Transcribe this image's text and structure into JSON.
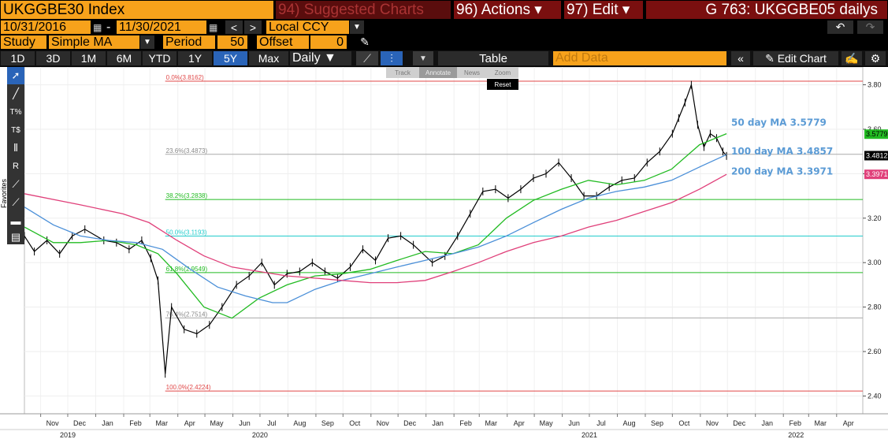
{
  "header": {
    "security": "UKGGBE30 Index",
    "suggested": "94) Suggested Charts",
    "actions": "96) Actions ▾",
    "edit": "97) Edit ▾",
    "title": "G 763: UKGGBE05 dailys"
  },
  "dates": {
    "start": "10/31/2016",
    "sep": "-",
    "end": "11/30/2021",
    "currency": "Local CCY"
  },
  "study": {
    "label": "Study",
    "type": "Simple MA",
    "period_label": "Period",
    "period": "50",
    "offset_label": "Offset",
    "offset": "0"
  },
  "ranges": [
    "1D",
    "3D",
    "1M",
    "6M",
    "YTD",
    "1Y",
    "5Y",
    "Max"
  ],
  "active_range": "5Y",
  "frequency": "Daily ▼",
  "table_label": "Table",
  "add_data": "Add Data",
  "edit_chart": "Edit Chart",
  "mini_tools": [
    "Track",
    "Annotate",
    "News",
    "Zoom"
  ],
  "reset": "Reset",
  "favorites": "Favorites",
  "colors": {
    "orange": "#f7a21b",
    "ma50": "#22bb22",
    "ma100": "#4a8fd8",
    "ma200": "#e0407a",
    "price": "#000000"
  },
  "chart_data": {
    "type": "line",
    "title": "",
    "yrange": [
      2.32,
      3.88
    ],
    "yticks": [
      2.4,
      2.6,
      2.8,
      3.0,
      3.2,
      3.4,
      3.6,
      3.8
    ],
    "ytick_labels": [
      "2.40",
      "2.60",
      "2.80",
      "3.00",
      "3.20",
      "3.40",
      "3.60",
      "3.80"
    ],
    "x_start": "2019-10-14",
    "x_end": "2022-04-30",
    "grid": true,
    "months": [
      {
        "label": "Nov",
        "date": "2019-11-01"
      },
      {
        "label": "Dec",
        "date": "2019-12-01"
      },
      {
        "label": "Jan",
        "date": "2020-01-01"
      },
      {
        "label": "Feb",
        "date": "2020-02-01"
      },
      {
        "label": "Mar",
        "date": "2020-03-01"
      },
      {
        "label": "Apr",
        "date": "2020-04-01"
      },
      {
        "label": "May",
        "date": "2020-05-01"
      },
      {
        "label": "Jun",
        "date": "2020-06-01"
      },
      {
        "label": "Jul",
        "date": "2020-07-01"
      },
      {
        "label": "Aug",
        "date": "2020-08-01"
      },
      {
        "label": "Sep",
        "date": "2020-09-01"
      },
      {
        "label": "Oct",
        "date": "2020-10-01"
      },
      {
        "label": "Nov",
        "date": "2020-11-01"
      },
      {
        "label": "Dec",
        "date": "2020-12-01"
      },
      {
        "label": "Jan",
        "date": "2021-01-01"
      },
      {
        "label": "Feb",
        "date": "2021-02-01"
      },
      {
        "label": "Mar",
        "date": "2021-03-01"
      },
      {
        "label": "Apr",
        "date": "2021-04-01"
      },
      {
        "label": "May",
        "date": "2021-05-01"
      },
      {
        "label": "Jun",
        "date": "2021-06-01"
      },
      {
        "label": "Jul",
        "date": "2021-07-01"
      },
      {
        "label": "Aug",
        "date": "2021-08-01"
      },
      {
        "label": "Sep",
        "date": "2021-09-01"
      },
      {
        "label": "Oct",
        "date": "2021-10-01"
      },
      {
        "label": "Nov",
        "date": "2021-11-01"
      },
      {
        "label": "Dec",
        "date": "2021-12-01"
      },
      {
        "label": "Jan",
        "date": "2022-01-01"
      },
      {
        "label": "Feb",
        "date": "2022-02-01"
      },
      {
        "label": "Mar",
        "date": "2022-03-01"
      },
      {
        "label": "Apr",
        "date": "2022-04-01"
      }
    ],
    "years": [
      {
        "label": "2019",
        "date": "2019-12-01"
      },
      {
        "label": "2020",
        "date": "2020-07-01"
      },
      {
        "label": "2021",
        "date": "2021-07-01"
      },
      {
        "label": "2022",
        "date": "2022-02-15"
      }
    ],
    "fib_levels": [
      {
        "label": "0.0%(3.8162)",
        "value": 3.8162,
        "color": "#e04848"
      },
      {
        "label": "23.6%(3.4873)",
        "value": 3.4873,
        "color": "#aaaaaa"
      },
      {
        "label": "38.2%(3.2838)",
        "value": 3.2838,
        "color": "#22bb22"
      },
      {
        "label": "50.0%(3.1193)",
        "value": 3.1193,
        "color": "#22cccc"
      },
      {
        "label": "61.8%(2.9549)",
        "value": 2.9549,
        "color": "#22bb22"
      },
      {
        "label": "76.4%(2.7514)",
        "value": 2.7514,
        "color": "#aaaaaa"
      },
      {
        "label": "100.0%(2.4224)",
        "value": 2.4224,
        "color": "#e04848"
      }
    ],
    "fib_start_date": "2020-03-18",
    "last_values": [
      {
        "label": "3.5779",
        "value": 3.5779,
        "color": "#22bb22",
        "text_color": "#000000"
      },
      {
        "label": "3.4812",
        "value": 3.4812,
        "color": "#000000",
        "text_color": "#ffffff"
      },
      {
        "label": "3.3971",
        "value": 3.3971,
        "color": "#e0407a",
        "text_color": "#ffffff"
      }
    ],
    "ma_labels": [
      {
        "text": "50 day MA 3.5779",
        "value": 3.63,
        "color": "#5b9bd5"
      },
      {
        "text": "100 day MA 3.4857",
        "value": 3.5,
        "color": "#5b9bd5"
      },
      {
        "text": "200 day MA 3.3971",
        "value": 3.41,
        "color": "#5b9bd5"
      }
    ],
    "series": [
      {
        "name": "UKGGBE30 Index",
        "color": "#000000",
        "points": [
          [
            "2019-10-14",
            3.12
          ],
          [
            "2019-10-25",
            3.05
          ],
          [
            "2019-11-08",
            3.1
          ],
          [
            "2019-11-22",
            3.04
          ],
          [
            "2019-12-06",
            3.12
          ],
          [
            "2019-12-20",
            3.15
          ],
          [
            "2020-01-10",
            3.1
          ],
          [
            "2020-01-24",
            3.09
          ],
          [
            "2020-02-07",
            3.06
          ],
          [
            "2020-02-21",
            3.1
          ],
          [
            "2020-03-02",
            3.02
          ],
          [
            "2020-03-10",
            2.92
          ],
          [
            "2020-03-18",
            2.5
          ],
          [
            "2020-03-25",
            2.8
          ],
          [
            "2020-04-08",
            2.7
          ],
          [
            "2020-04-22",
            2.68
          ],
          [
            "2020-05-06",
            2.72
          ],
          [
            "2020-05-20",
            2.8
          ],
          [
            "2020-06-05",
            2.9
          ],
          [
            "2020-06-19",
            2.94
          ],
          [
            "2020-07-03",
            3.0
          ],
          [
            "2020-07-17",
            2.9
          ],
          [
            "2020-07-31",
            2.95
          ],
          [
            "2020-08-14",
            2.96
          ],
          [
            "2020-08-28",
            3.0
          ],
          [
            "2020-09-11",
            2.96
          ],
          [
            "2020-09-25",
            2.93
          ],
          [
            "2020-10-09",
            2.98
          ],
          [
            "2020-10-23",
            3.06
          ],
          [
            "2020-11-06",
            3.01
          ],
          [
            "2020-11-20",
            3.11
          ],
          [
            "2020-12-04",
            3.12
          ],
          [
            "2020-12-18",
            3.08
          ],
          [
            "2021-01-08",
            3.0
          ],
          [
            "2021-01-22",
            3.03
          ],
          [
            "2021-02-05",
            3.12
          ],
          [
            "2021-02-19",
            3.22
          ],
          [
            "2021-03-05",
            3.32
          ],
          [
            "2021-03-19",
            3.33
          ],
          [
            "2021-04-02",
            3.29
          ],
          [
            "2021-04-16",
            3.33
          ],
          [
            "2021-04-30",
            3.38
          ],
          [
            "2021-05-14",
            3.4
          ],
          [
            "2021-05-28",
            3.45
          ],
          [
            "2021-06-11",
            3.38
          ],
          [
            "2021-06-25",
            3.3
          ],
          [
            "2021-07-09",
            3.3
          ],
          [
            "2021-07-23",
            3.34
          ],
          [
            "2021-08-06",
            3.37
          ],
          [
            "2021-08-20",
            3.38
          ],
          [
            "2021-09-03",
            3.45
          ],
          [
            "2021-09-17",
            3.5
          ],
          [
            "2021-10-01",
            3.58
          ],
          [
            "2021-10-08",
            3.65
          ],
          [
            "2021-10-15",
            3.72
          ],
          [
            "2021-10-22",
            3.8
          ],
          [
            "2021-10-29",
            3.62
          ],
          [
            "2021-11-05",
            3.52
          ],
          [
            "2021-11-12",
            3.58
          ],
          [
            "2021-11-19",
            3.56
          ],
          [
            "2021-11-26",
            3.5
          ],
          [
            "2021-11-30",
            3.48
          ]
        ]
      },
      {
        "name": "50 day MA",
        "color": "#22bb22",
        "points": [
          [
            "2019-10-14",
            3.16
          ],
          [
            "2019-11-15",
            3.09
          ],
          [
            "2019-12-15",
            3.09
          ],
          [
            "2020-01-15",
            3.1
          ],
          [
            "2020-02-15",
            3.08
          ],
          [
            "2020-03-10",
            3.04
          ],
          [
            "2020-03-31",
            2.95
          ],
          [
            "2020-04-30",
            2.8
          ],
          [
            "2020-05-31",
            2.75
          ],
          [
            "2020-06-30",
            2.84
          ],
          [
            "2020-07-31",
            2.9
          ],
          [
            "2020-08-31",
            2.94
          ],
          [
            "2020-09-30",
            2.95
          ],
          [
            "2020-10-31",
            2.97
          ],
          [
            "2020-11-30",
            3.01
          ],
          [
            "2020-12-31",
            3.05
          ],
          [
            "2021-01-31",
            3.04
          ],
          [
            "2021-02-28",
            3.08
          ],
          [
            "2021-03-31",
            3.2
          ],
          [
            "2021-04-30",
            3.28
          ],
          [
            "2021-05-31",
            3.33
          ],
          [
            "2021-06-30",
            3.37
          ],
          [
            "2021-07-31",
            3.35
          ],
          [
            "2021-08-31",
            3.37
          ],
          [
            "2021-09-30",
            3.42
          ],
          [
            "2021-10-31",
            3.53
          ],
          [
            "2021-11-30",
            3.58
          ]
        ]
      },
      {
        "name": "100 day MA",
        "color": "#4a8fd8",
        "points": [
          [
            "2019-10-14",
            3.25
          ],
          [
            "2019-11-15",
            3.17
          ],
          [
            "2019-12-15",
            3.12
          ],
          [
            "2020-01-15",
            3.1
          ],
          [
            "2020-02-15",
            3.09
          ],
          [
            "2020-03-15",
            3.06
          ],
          [
            "2020-04-15",
            2.97
          ],
          [
            "2020-05-15",
            2.89
          ],
          [
            "2020-06-15",
            2.85
          ],
          [
            "2020-07-15",
            2.82
          ],
          [
            "2020-07-31",
            2.82
          ],
          [
            "2020-08-31",
            2.88
          ],
          [
            "2020-09-30",
            2.92
          ],
          [
            "2020-10-31",
            2.95
          ],
          [
            "2020-11-30",
            2.98
          ],
          [
            "2020-12-31",
            3.01
          ],
          [
            "2021-01-31",
            3.04
          ],
          [
            "2021-02-28",
            3.07
          ],
          [
            "2021-03-31",
            3.12
          ],
          [
            "2021-04-30",
            3.18
          ],
          [
            "2021-05-31",
            3.24
          ],
          [
            "2021-06-30",
            3.29
          ],
          [
            "2021-07-31",
            3.32
          ],
          [
            "2021-08-31",
            3.34
          ],
          [
            "2021-09-30",
            3.37
          ],
          [
            "2021-10-31",
            3.43
          ],
          [
            "2021-11-30",
            3.4857
          ]
        ]
      },
      {
        "name": "200 day MA",
        "color": "#e0407a",
        "points": [
          [
            "2019-10-14",
            3.31
          ],
          [
            "2019-12-15",
            3.26
          ],
          [
            "2020-01-31",
            3.22
          ],
          [
            "2020-02-29",
            3.18
          ],
          [
            "2020-03-31",
            3.1
          ],
          [
            "2020-04-30",
            3.03
          ],
          [
            "2020-05-31",
            2.98
          ],
          [
            "2020-06-30",
            2.96
          ],
          [
            "2020-07-31",
            2.94
          ],
          [
            "2020-08-31",
            2.93
          ],
          [
            "2020-09-30",
            2.92
          ],
          [
            "2020-10-31",
            2.91
          ],
          [
            "2020-11-30",
            2.91
          ],
          [
            "2020-12-31",
            2.92
          ],
          [
            "2021-01-31",
            2.96
          ],
          [
            "2021-02-28",
            3.0
          ],
          [
            "2021-03-31",
            3.05
          ],
          [
            "2021-04-30",
            3.09
          ],
          [
            "2021-05-31",
            3.12
          ],
          [
            "2021-06-30",
            3.16
          ],
          [
            "2021-07-31",
            3.19
          ],
          [
            "2021-08-31",
            3.23
          ],
          [
            "2021-09-30",
            3.27
          ],
          [
            "2021-10-31",
            3.33
          ],
          [
            "2021-11-30",
            3.3971
          ]
        ]
      }
    ]
  }
}
